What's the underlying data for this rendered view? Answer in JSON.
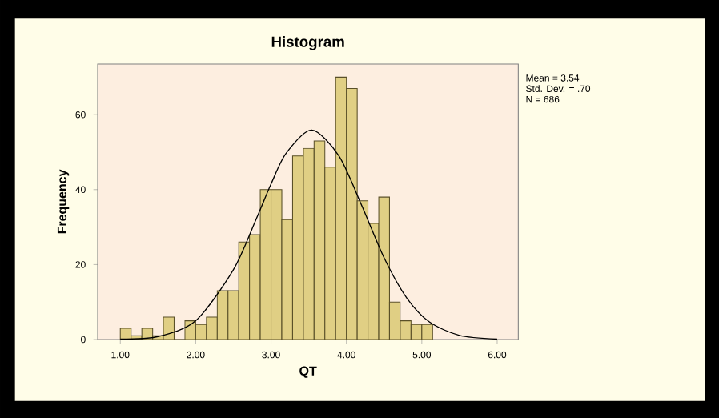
{
  "chart_data": {
    "type": "histogram",
    "title": "Histogram",
    "xlabel": "QT",
    "ylabel": "Frequency",
    "bins": [
      1,
      1.143,
      1.286,
      1.429,
      1.571,
      1.714,
      1.857,
      2,
      2.143,
      2.286,
      2.429,
      2.571,
      2.714,
      2.857,
      3,
      3.143,
      3.286,
      3.429,
      3.571,
      3.714,
      3.857,
      4,
      4.143,
      4.286,
      4.429,
      4.571,
      4.714,
      4.857,
      5,
      5.143
    ],
    "values": [
      3,
      1,
      3,
      1,
      6,
      0,
      5,
      4,
      6,
      13,
      13,
      26,
      28,
      40,
      40,
      32,
      49,
      51,
      53,
      46,
      70,
      67,
      37,
      31,
      38,
      10,
      5,
      4,
      4
    ],
    "color": "#e0cf84",
    "series": [
      {
        "type": "line",
        "color": "#000000",
        "x": [
          1.0,
          1.5,
          2.0,
          2.5,
          2.8,
          3.0,
          3.2,
          3.54,
          3.9,
          4.2,
          4.5,
          4.8,
          5.1,
          5.5,
          6.0
        ],
        "values": [
          0.1,
          0.8,
          5.0,
          18.6,
          32.0,
          41.5,
          49.7,
          55.9,
          49.0,
          35.9,
          21.8,
          11.1,
          4.7,
          1.1,
          0.1
        ]
      }
    ],
    "xlim": [
      0.7,
      6.28
    ],
    "ylim": [
      0,
      73.5
    ],
    "xticks": [
      {
        "value": 1,
        "label": "1.00"
      },
      {
        "value": 2,
        "label": "2.00"
      },
      {
        "value": 3,
        "label": "3.00"
      },
      {
        "value": 4,
        "label": "4.00"
      },
      {
        "value": 5,
        "label": "5.00"
      },
      {
        "value": 6,
        "label": "6.00"
      }
    ],
    "yticks": [
      0,
      20,
      40,
      60
    ],
    "annotations": [
      "Mean = 3.54",
      "Std. Dev. = .70",
      "N = 686"
    ]
  }
}
